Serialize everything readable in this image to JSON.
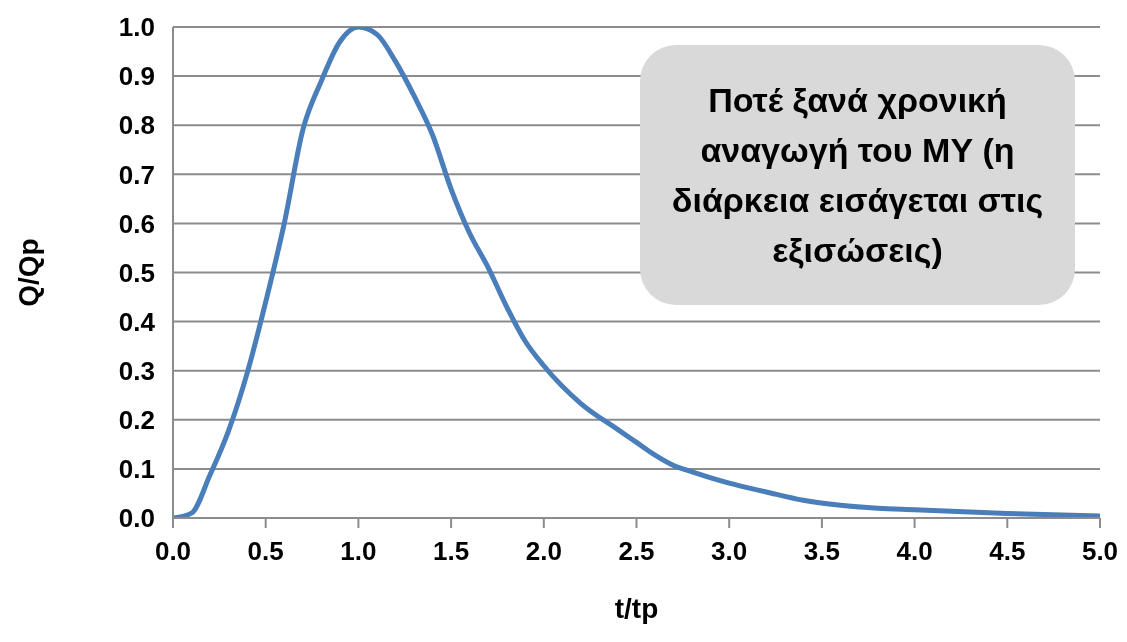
{
  "chart_data": {
    "type": "line",
    "xlabel": "t/tp",
    "ylabel": "Q/Qp",
    "annotations": [
      "Ποτέ ξανά χρονική αναγωγή του ΜΥ (η διάρκεια εισάγεται στις εξισώσεις)"
    ],
    "x": [
      0,
      0.1,
      0.2,
      0.3,
      0.4,
      0.5,
      0.6,
      0.7,
      0.8,
      0.9,
      1.0,
      1.1,
      1.2,
      1.3,
      1.4,
      1.5,
      1.6,
      1.7,
      1.8,
      1.9,
      2.0,
      2.2,
      2.4,
      2.5,
      2.6,
      2.7,
      2.8,
      3.0,
      3.2,
      3.4,
      3.6,
      3.8,
      4.0,
      4.5,
      5.0
    ],
    "series": [
      {
        "color": "#4a7ebb",
        "values": [
          0,
          0.01,
          0.088,
          0.178,
          0.295,
          0.44,
          0.6,
          0.79,
          0.89,
          0.97,
          1.0,
          0.985,
          0.93,
          0.86,
          0.78,
          0.67,
          0.58,
          0.51,
          0.43,
          0.36,
          0.31,
          0.233,
          0.18,
          0.154,
          0.128,
          0.107,
          0.094,
          0.071,
          0.053,
          0.036,
          0.026,
          0.02,
          0.017,
          0.009,
          0.004
        ]
      }
    ],
    "xlim": [
      0,
      5
    ],
    "xticks": [
      {
        "value": 0,
        "label": "0.0"
      },
      {
        "value": 0.5,
        "label": "0.5"
      },
      {
        "value": 1,
        "label": "1.0"
      },
      {
        "value": 1.5,
        "label": "1.5"
      },
      {
        "value": 2,
        "label": "2.0"
      },
      {
        "value": 2.5,
        "label": "2.5"
      },
      {
        "value": 3,
        "label": "3.0"
      },
      {
        "value": 3.5,
        "label": "3.5"
      },
      {
        "value": 4,
        "label": "4.0"
      },
      {
        "value": 4.5,
        "label": "4.5"
      },
      {
        "value": 5,
        "label": "5.0"
      }
    ],
    "ylim": [
      0,
      1
    ],
    "yticks": [
      {
        "value": 0,
        "label": "0.0"
      },
      {
        "value": 0.1,
        "label": "0.1"
      },
      {
        "value": 0.2,
        "label": "0.2"
      },
      {
        "value": 0.3,
        "label": "0.3"
      },
      {
        "value": 0.4,
        "label": "0.4"
      },
      {
        "value": 0.5,
        "label": "0.5"
      },
      {
        "value": 0.6,
        "label": "0.6"
      },
      {
        "value": 0.7,
        "label": "0.7"
      },
      {
        "value": 0.8,
        "label": "0.8"
      },
      {
        "value": 0.9,
        "label": "0.9"
      },
      {
        "value": 1,
        "label": "1.0"
      }
    ],
    "grid": "y",
    "legend": false,
    "marker": "none",
    "line_style": "solid"
  }
}
